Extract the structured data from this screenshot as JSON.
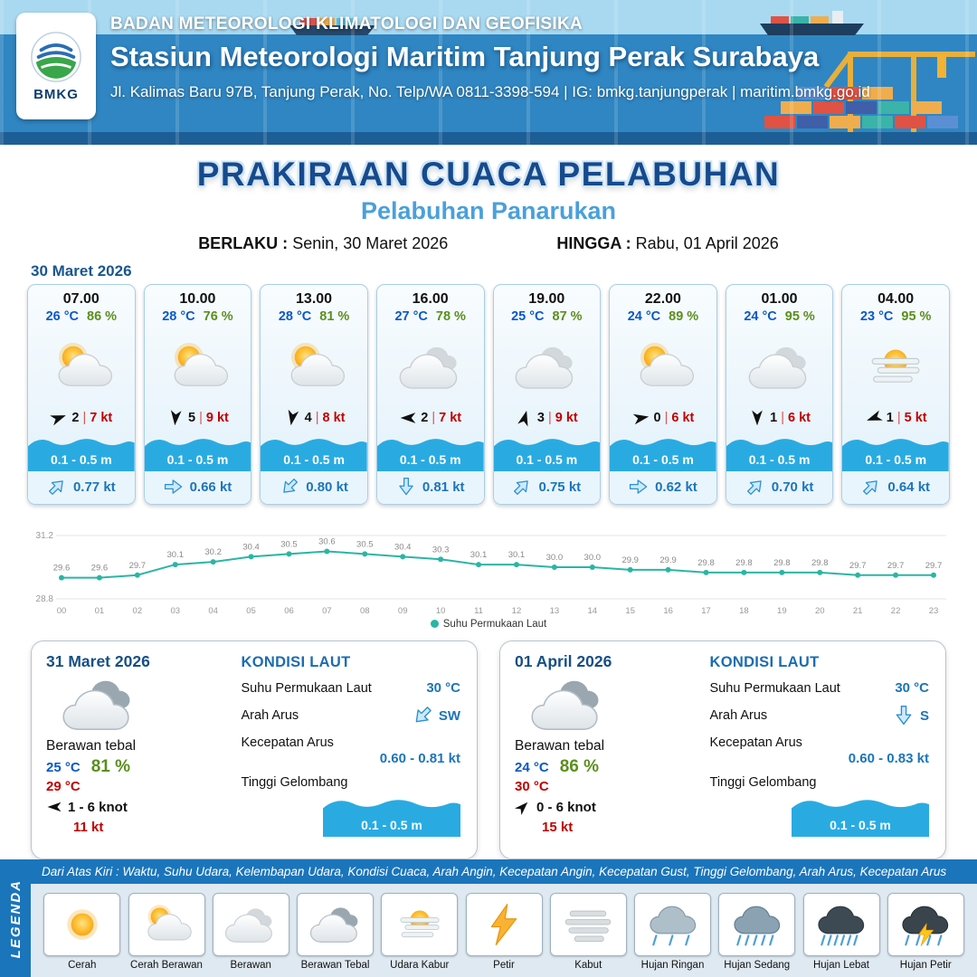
{
  "header": {
    "logo_text": "BMKG",
    "org": "BADAN METEOROLOGI KLIMATOLOGI DAN GEOFISIKA",
    "station": "Stasiun Meteorologi Maritim Tanjung Perak Surabaya",
    "address": "Jl. Kalimas Baru 97B, Tanjung Perak, No. Telp/WA 0811-3398-594 | IG: bmkg.tanjungperak | maritim.bmkg.go.id"
  },
  "title": {
    "main": "PRAKIRAAN CUACA PELABUHAN",
    "subtitle": "Pelabuhan Panarukan",
    "valid_label": "BERLAKU :",
    "valid_value": "Senin, 30 Maret 2026",
    "until_label": "HINGGA :",
    "until_value": "Rabu, 01 April 2026"
  },
  "forecast": {
    "date": "30 Maret 2026",
    "hours": [
      {
        "time": "07.00",
        "temp": "26 °C",
        "humidity": "86 %",
        "icon": "cerah-berawan",
        "wind_dir_deg": -20,
        "wind_speed": "2",
        "gust": "7 kt",
        "wave_height": "0.1 - 0.5 m",
        "current_speed": "0.77 kt",
        "current_dir_deg": -45
      },
      {
        "time": "10.00",
        "temp": "28 °C",
        "humidity": "76 %",
        "icon": "cerah-berawan",
        "wind_dir_deg": 95,
        "wind_speed": "5",
        "gust": "9 kt",
        "wave_height": "0.1 - 0.5 m",
        "current_speed": "0.66 kt",
        "current_dir_deg": 0
      },
      {
        "time": "13.00",
        "temp": "28 °C",
        "humidity": "81 %",
        "icon": "cerah-berawan",
        "wind_dir_deg": 100,
        "wind_speed": "4",
        "gust": "8 kt",
        "wave_height": "0.1 - 0.5 m",
        "current_speed": "0.80 kt",
        "current_dir_deg": 135
      },
      {
        "time": "16.00",
        "temp": "27 °C",
        "humidity": "78 %",
        "icon": "berawan",
        "wind_dir_deg": 180,
        "wind_speed": "2",
        "gust": "7 kt",
        "wave_height": "0.1 - 0.5 m",
        "current_speed": "0.81 kt",
        "current_dir_deg": 90
      },
      {
        "time": "19.00",
        "temp": "25 °C",
        "humidity": "87 %",
        "icon": "berawan",
        "wind_dir_deg": -75,
        "wind_speed": "3",
        "gust": "9 kt",
        "wave_height": "0.1 - 0.5 m",
        "current_speed": "0.75 kt",
        "current_dir_deg": -45
      },
      {
        "time": "22.00",
        "temp": "24 °C",
        "humidity": "89 %",
        "icon": "cerah-berawan",
        "wind_dir_deg": -10,
        "wind_speed": "0",
        "gust": "6 kt",
        "wave_height": "0.1 - 0.5 m",
        "current_speed": "0.62 kt",
        "current_dir_deg": 0
      },
      {
        "time": "01.00",
        "temp": "24 °C",
        "humidity": "95 %",
        "icon": "berawan",
        "wind_dir_deg": 90,
        "wind_speed": "1",
        "gust": "6 kt",
        "wave_height": "0.1 - 0.5 m",
        "current_speed": "0.70 kt",
        "current_dir_deg": -45
      },
      {
        "time": "04.00",
        "temp": "23 °C",
        "humidity": "95 %",
        "icon": "udara-kabur",
        "wind_dir_deg": 160,
        "wind_speed": "1",
        "gust": "5 kt",
        "wave_height": "0.1 - 0.5 m",
        "current_speed": "0.64 kt",
        "current_dir_deg": -45
      }
    ]
  },
  "chart_data": {
    "type": "line",
    "legend": "Suhu Permukaan Laut",
    "x": [
      "00",
      "01",
      "02",
      "03",
      "04",
      "05",
      "06",
      "07",
      "08",
      "09",
      "10",
      "11",
      "12",
      "13",
      "14",
      "15",
      "16",
      "17",
      "18",
      "19",
      "20",
      "21",
      "22",
      "23"
    ],
    "values": [
      29.6,
      29.6,
      29.7,
      30.1,
      30.2,
      30.4,
      30.5,
      30.6,
      30.5,
      30.4,
      30.3,
      30.1,
      30.1,
      30.0,
      30.0,
      29.9,
      29.9,
      29.8,
      29.8,
      29.8,
      29.8,
      29.7,
      29.7,
      29.7
    ],
    "ylim": [
      28.8,
      31.2
    ],
    "line_color": "#2bb5a5",
    "xlabel": "",
    "ylabel": ""
  },
  "days": [
    {
      "date": "31 Maret 2026",
      "icon": "berawan-tebal",
      "condition": "Berawan tebal",
      "temp": "25 °C",
      "humidity": "81 %",
      "temp_max": "29 °C",
      "wind_dir_deg": 180,
      "wind_speed": "1 - 6 knot",
      "gust": "11 kt",
      "sea": {
        "heading": "KONDISI LAUT",
        "sst_label": "Suhu Permukaan Laut",
        "sst": "30 °C",
        "current_dir_label": "Arah Arus",
        "current_dir": "SW",
        "current_dir_deg": 135,
        "current_speed_label": "Kecepatan Arus",
        "current_speed": "0.60 - 0.81 kt",
        "wave_label": "Tinggi Gelombang",
        "wave": "0.1 - 0.5 m"
      }
    },
    {
      "date": "01 April 2026",
      "icon": "berawan-tebal",
      "condition": "Berawan tebal",
      "temp": "24 °C",
      "humidity": "86 %",
      "temp_max": "30 °C",
      "wind_dir_deg": -45,
      "wind_speed": "0 - 6 knot",
      "gust": "15 kt",
      "sea": {
        "heading": "KONDISI LAUT",
        "sst_label": "Suhu Permukaan Laut",
        "sst": "30 °C",
        "current_dir_label": "Arah Arus",
        "current_dir": "S",
        "current_dir_deg": 90,
        "current_speed_label": "Kecepatan Arus",
        "current_speed": "0.60 - 0.83 kt",
        "wave_label": "Tinggi Gelombang",
        "wave": "0.1 - 0.5 m"
      }
    }
  ],
  "legend": {
    "strip_label": "LEGENDA",
    "description": "Dari Atas Kiri : Waktu, Suhu Udara, Kelembapan Udara, Kondisi Cuaca, Arah Angin, Kecepatan Angin, Kecepatan Gust, Tinggi Gelombang, Arah Arus, Kecepatan Arus",
    "items": [
      {
        "label": "Cerah",
        "icon": "cerah"
      },
      {
        "label": "Cerah Berawan",
        "icon": "cerah-berawan"
      },
      {
        "label": "Berawan",
        "icon": "berawan"
      },
      {
        "label": "Berawan Tebal",
        "icon": "berawan-tebal"
      },
      {
        "label": "Udara Kabur",
        "icon": "udara-kabur"
      },
      {
        "label": "Petir",
        "icon": "petir"
      },
      {
        "label": "Kabut",
        "icon": "kabut"
      },
      {
        "label": "Hujan Ringan",
        "icon": "hujan-ringan"
      },
      {
        "label": "Hujan Sedang",
        "icon": "hujan-sedang"
      },
      {
        "label": "Hujan Lebat",
        "icon": "hujan-lebat"
      },
      {
        "label": "Hujan Petir",
        "icon": "hujan-petir"
      }
    ]
  },
  "colors": {
    "primary_blue": "#1b75bb",
    "band_blue": "#29abe2",
    "temp_blue": "#0a58c8",
    "humidity_green": "#5a8f1d",
    "gust_red": "#c00000",
    "title_navy": "#174a8c",
    "subtitle_blue": "#4aa0dc",
    "sst_line": "#2bb5a5"
  }
}
